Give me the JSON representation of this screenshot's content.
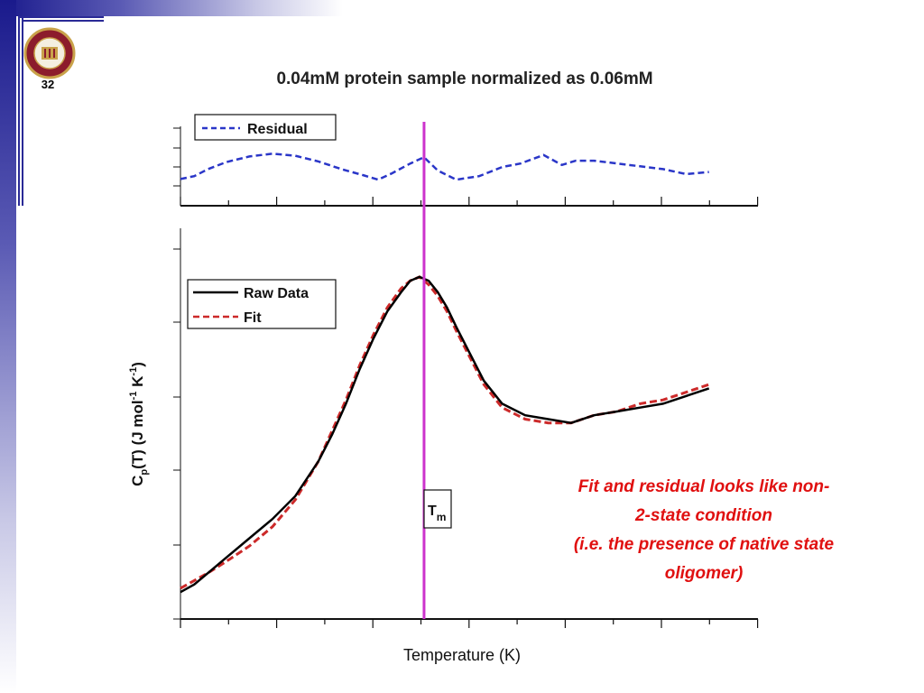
{
  "slide": {
    "number": "32",
    "logo": "fsu-seal-logo",
    "logo_text": "FLORIDA STATE UNIVERSITY 1851"
  },
  "colors": {
    "frame": "#2a2a96",
    "residual": "#2a36c8",
    "raw": "#000000",
    "fit": "#cc2a2a",
    "tm_line": "#cc33cc",
    "annotation": "#e01010"
  },
  "annotation": {
    "line1": "Fit and residual looks like non-",
    "line2": "2-state condition",
    "line3": "(i.e. the presence of native state",
    "line4": "oligomer)"
  },
  "chart_data": [
    {
      "type": "line",
      "panel": "top",
      "title": "0.04mM protein sample normalized as 0.06mM",
      "legend": [
        "Residual"
      ],
      "legend_position": "top-left",
      "x": [
        0,
        0.3,
        0.6,
        1.0,
        1.5,
        2.0,
        2.5,
        3.0,
        3.5,
        4.0,
        4.3,
        4.6,
        5.0,
        5.3,
        5.6,
        6.0,
        6.5,
        7.0,
        7.4,
        7.9,
        8.3,
        8.6,
        9.0,
        9.5,
        10.0,
        10.5,
        11.0,
        11.5
      ],
      "series": [
        {
          "name": "Residual",
          "values": [
            0.38,
            0.42,
            0.52,
            0.62,
            0.7,
            0.74,
            0.71,
            0.63,
            0.52,
            0.43,
            0.37,
            0.46,
            0.6,
            0.69,
            0.5,
            0.37,
            0.42,
            0.55,
            0.6,
            0.72,
            0.58,
            0.64,
            0.64,
            0.6,
            0.56,
            0.52,
            0.45,
            0.48
          ]
        }
      ],
      "ylim": [
        0,
        1
      ],
      "xlim": [
        0,
        12
      ]
    },
    {
      "type": "line",
      "panel": "bottom",
      "xlabel": "Temperature (K)",
      "ylabel": "Cp(T) (J mol-1 K-1)",
      "legend": [
        "Raw Data",
        "Fit"
      ],
      "legend_position": "top-left",
      "tm_x": 5.3,
      "tm_label": "Tm",
      "xlim": [
        0,
        12
      ],
      "ylim": [
        0,
        1
      ],
      "x": [
        0,
        0.3,
        0.6,
        1.0,
        1.5,
        2.0,
        2.5,
        3.0,
        3.3,
        3.6,
        3.9,
        4.2,
        4.5,
        4.8,
        5.0,
        5.2,
        5.4,
        5.6,
        5.8,
        6.0,
        6.3,
        6.6,
        7.0,
        7.5,
        8.0,
        8.5,
        9.0,
        9.5,
        10.0,
        10.5,
        11.0,
        11.5
      ],
      "series": [
        {
          "name": "Raw Data",
          "values": [
            0.07,
            0.09,
            0.12,
            0.16,
            0.21,
            0.26,
            0.32,
            0.41,
            0.48,
            0.56,
            0.65,
            0.73,
            0.8,
            0.85,
            0.88,
            0.89,
            0.88,
            0.85,
            0.81,
            0.76,
            0.69,
            0.62,
            0.56,
            0.53,
            0.52,
            0.51,
            0.53,
            0.54,
            0.55,
            0.56,
            0.58,
            0.6
          ]
        },
        {
          "name": "Fit",
          "values": [
            0.08,
            0.1,
            0.12,
            0.15,
            0.19,
            0.24,
            0.31,
            0.41,
            0.49,
            0.57,
            0.66,
            0.74,
            0.81,
            0.86,
            0.88,
            0.89,
            0.87,
            0.84,
            0.8,
            0.75,
            0.68,
            0.61,
            0.55,
            0.52,
            0.51,
            0.51,
            0.53,
            0.54,
            0.56,
            0.57,
            0.59,
            0.61
          ]
        }
      ]
    }
  ]
}
